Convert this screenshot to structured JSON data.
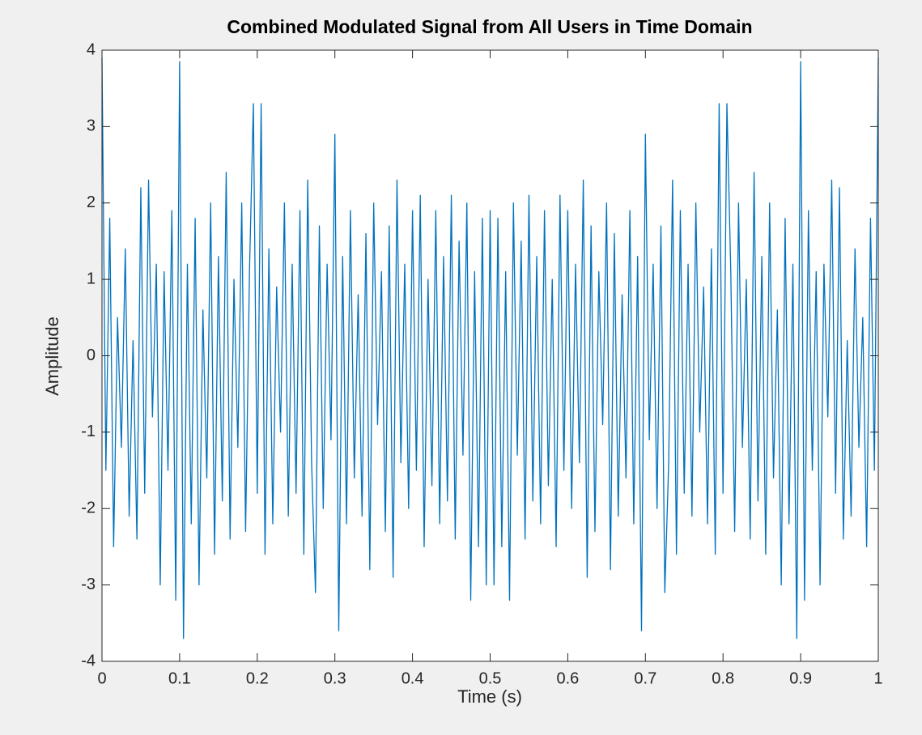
{
  "chart_data": {
    "type": "line",
    "title": "Combined Modulated Signal from All Users in Time Domain",
    "xlabel": "Time (s)",
    "ylabel": "Amplitude",
    "color": "#0072bd",
    "xlim": [
      0,
      1
    ],
    "ylim": [
      -4,
      4
    ],
    "xticks": [
      0,
      0.1,
      0.2,
      0.3,
      0.4,
      0.5,
      0.6,
      0.7,
      0.8,
      0.9,
      1
    ],
    "yticks": [
      -4,
      -3,
      -2,
      -1,
      0,
      1,
      2,
      3,
      4
    ],
    "x": [
      0,
      0.005,
      0.01,
      0.015,
      0.02,
      0.025,
      0.03,
      0.035,
      0.04,
      0.045,
      0.05,
      0.055,
      0.06,
      0.065,
      0.07,
      0.075,
      0.08,
      0.085,
      0.09,
      0.095,
      0.1,
      0.105,
      0.11,
      0.115,
      0.12,
      0.125,
      0.13,
      0.135,
      0.14,
      0.145,
      0.15,
      0.155,
      0.16,
      0.165,
      0.17,
      0.175,
      0.18,
      0.185,
      0.19,
      0.195,
      0.2,
      0.205,
      0.21,
      0.215,
      0.22,
      0.225,
      0.23,
      0.235,
      0.24,
      0.245,
      0.25,
      0.255,
      0.26,
      0.265,
      0.27,
      0.275,
      0.28,
      0.285,
      0.29,
      0.295,
      0.3,
      0.305,
      0.31,
      0.315,
      0.32,
      0.325,
      0.33,
      0.335,
      0.34,
      0.345,
      0.35,
      0.355,
      0.36,
      0.365,
      0.37,
      0.375,
      0.38,
      0.385,
      0.39,
      0.395,
      0.4,
      0.405,
      0.41,
      0.415,
      0.42,
      0.425,
      0.43,
      0.435,
      0.44,
      0.445,
      0.45,
      0.455,
      0.46,
      0.465,
      0.47,
      0.475,
      0.48,
      0.485,
      0.49,
      0.495,
      0.5,
      0.505,
      0.51,
      0.515,
      0.52,
      0.525,
      0.53,
      0.535,
      0.54,
      0.545,
      0.55,
      0.555,
      0.56,
      0.565,
      0.57,
      0.575,
      0.58,
      0.585,
      0.59,
      0.595,
      0.6,
      0.605,
      0.61,
      0.615,
      0.62,
      0.625,
      0.63,
      0.635,
      0.64,
      0.645,
      0.65,
      0.655,
      0.66,
      0.665,
      0.67,
      0.675,
      0.68,
      0.685,
      0.69,
      0.695,
      0.7,
      0.705,
      0.71,
      0.715,
      0.72,
      0.725,
      0.73,
      0.735,
      0.74,
      0.745,
      0.75,
      0.755,
      0.76,
      0.765,
      0.77,
      0.775,
      0.78,
      0.785,
      0.79,
      0.795,
      0.8,
      0.805,
      0.81,
      0.815,
      0.82,
      0.825,
      0.83,
      0.835,
      0.84,
      0.845,
      0.85,
      0.855,
      0.86,
      0.865,
      0.87,
      0.875,
      0.88,
      0.885,
      0.89,
      0.895,
      0.9,
      0.905,
      0.91,
      0.915,
      0.92,
      0.925,
      0.93,
      0.935,
      0.94,
      0.945,
      0.95,
      0.955,
      0.96,
      0.965,
      0.97,
      0.975,
      0.98,
      0.985,
      0.99,
      0.995,
      1
    ],
    "values": [
      3.9,
      -1.5,
      1.8,
      -2.5,
      0.5,
      -1.2,
      1.4,
      -2.1,
      0.2,
      -2.4,
      2.2,
      -1.8,
      2.3,
      -0.8,
      1.2,
      -3.0,
      1.1,
      -1.5,
      1.9,
      -3.2,
      3.85,
      -3.7,
      1.2,
      -2.2,
      1.8,
      -3.0,
      0.6,
      -1.6,
      2.0,
      -2.6,
      1.3,
      -1.9,
      2.4,
      -2.4,
      1.0,
      -1.2,
      2.0,
      -2.3,
      1.1,
      3.3,
      -1.8,
      3.3,
      -2.6,
      1.4,
      -2.2,
      0.9,
      -1.0,
      2.0,
      -2.1,
      1.2,
      -1.8,
      1.9,
      -2.6,
      2.3,
      -1.4,
      -3.1,
      1.7,
      -2.0,
      1.2,
      -1.1,
      2.9,
      -3.6,
      1.3,
      -2.2,
      1.9,
      -1.6,
      0.8,
      -2.1,
      1.6,
      -2.8,
      2.0,
      -0.9,
      1.1,
      -2.3,
      1.7,
      -2.9,
      2.3,
      -1.4,
      1.2,
      -2.0,
      1.9,
      -1.5,
      2.1,
      -2.5,
      1.0,
      -1.7,
      1.9,
      -2.2,
      1.3,
      -1.9,
      2.1,
      -2.4,
      1.5,
      -1.3,
      2.0,
      -3.2,
      1.1,
      -2.5,
      1.8,
      -3.0,
      1.9,
      -3.0,
      1.8,
      -2.5,
      1.1,
      -3.2,
      2.0,
      -1.3,
      1.5,
      -2.4,
      2.1,
      -1.9,
      1.3,
      -2.2,
      1.9,
      -1.7,
      1.0,
      -2.5,
      2.1,
      -1.5,
      1.9,
      -2.0,
      1.2,
      -1.4,
      2.3,
      -2.9,
      1.7,
      -2.3,
      1.1,
      -0.9,
      2.0,
      -2.8,
      1.6,
      -2.1,
      0.8,
      -1.6,
      1.9,
      -2.2,
      1.3,
      -3.6,
      2.9,
      -1.1,
      1.2,
      -2.0,
      1.7,
      -3.1,
      -1.4,
      2.3,
      -2.6,
      1.9,
      -1.8,
      1.2,
      -2.1,
      2.0,
      -1.0,
      0.9,
      -2.2,
      1.4,
      -2.6,
      3.3,
      -1.8,
      3.3,
      1.1,
      -2.3,
      2.0,
      -1.2,
      1.0,
      -2.4,
      2.4,
      -1.9,
      1.3,
      -2.6,
      2.0,
      -1.6,
      0.6,
      -3.0,
      1.8,
      -2.2,
      1.2,
      -3.7,
      3.85,
      -3.2,
      1.9,
      -1.5,
      1.1,
      -3.0,
      1.2,
      -0.8,
      2.3,
      -1.8,
      2.2,
      -2.4,
      0.2,
      -2.1,
      1.4,
      -1.2,
      0.5,
      -2.5,
      1.8,
      -1.5,
      3.9
    ]
  }
}
